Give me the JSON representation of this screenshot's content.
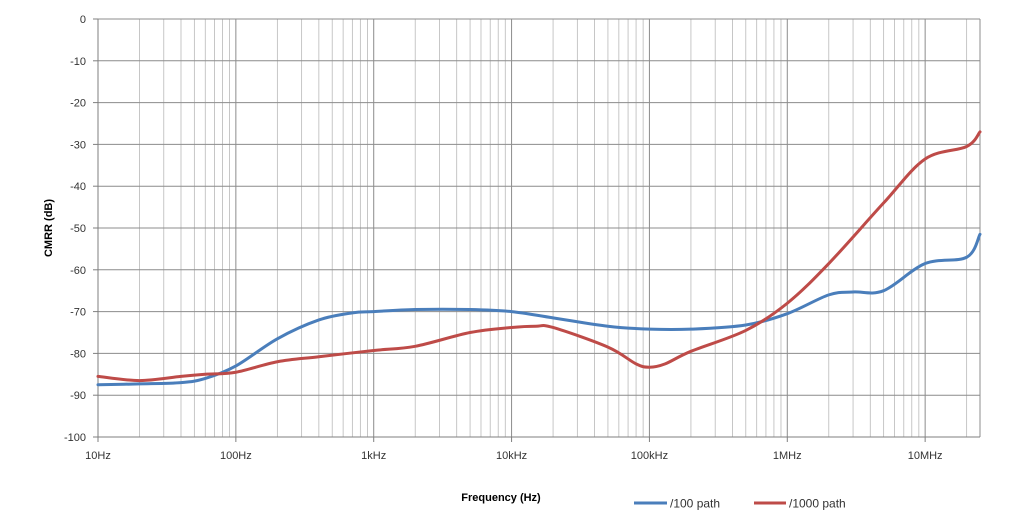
{
  "chart_data": {
    "type": "line",
    "title": "",
    "xlabel": "Frequency (Hz)",
    "ylabel": "CMRR (dB)",
    "xscale": "log",
    "xlim": [
      10,
      25000000
    ],
    "ylim": [
      -100,
      0
    ],
    "yticks": [
      0,
      -10,
      -20,
      -30,
      -40,
      -50,
      -60,
      -70,
      -80,
      -90,
      -100
    ],
    "xticks": [
      {
        "value": 10,
        "label": "10Hz"
      },
      {
        "value": 100,
        "label": "100Hz"
      },
      {
        "value": 1000,
        "label": "1kHz"
      },
      {
        "value": 10000,
        "label": "10kHz"
      },
      {
        "value": 100000,
        "label": "100kHz"
      },
      {
        "value": 1000000,
        "label": "1MHz"
      },
      {
        "value": 10000000,
        "label": "10MHz"
      }
    ],
    "grid": true,
    "legend_position": "bottom-right",
    "series": [
      {
        "name": "/100 path",
        "color": "#4a7ebb",
        "x": [
          10,
          20,
          40,
          60,
          100,
          200,
          400,
          700,
          1000,
          2000,
          5000,
          10000,
          20000,
          50000,
          100000,
          200000,
          500000,
          1000000,
          2000000,
          3000000,
          5000000,
          10000000,
          20000000,
          25000000
        ],
        "y": [
          -87.5,
          -87.3,
          -87,
          -86,
          -83,
          -76.5,
          -72,
          -70.3,
          -70,
          -69.5,
          -69.5,
          -70,
          -71.5,
          -73.5,
          -74.2,
          -74.2,
          -73.2,
          -70.5,
          -66,
          -65.3,
          -65,
          -58.5,
          -57,
          -51.5
        ]
      },
      {
        "name": "/1000 path",
        "color": "#be4b48",
        "x": [
          10,
          20,
          40,
          60,
          100,
          200,
          400,
          1000,
          2000,
          5000,
          10000,
          15000,
          20000,
          50000,
          80000,
          100000,
          130000,
          200000,
          500000,
          1000000,
          2000000,
          5000000,
          10000000,
          20000000,
          25000000
        ],
        "y": [
          -85.5,
          -86.5,
          -85.5,
          -85,
          -84.5,
          -82,
          -80.8,
          -79.3,
          -78.3,
          -75,
          -73.8,
          -73.5,
          -73.8,
          -78.5,
          -82.5,
          -83.3,
          -82.5,
          -79.5,
          -74.5,
          -68,
          -58.5,
          -44,
          -33.5,
          -30.5,
          -27
        ]
      }
    ]
  }
}
